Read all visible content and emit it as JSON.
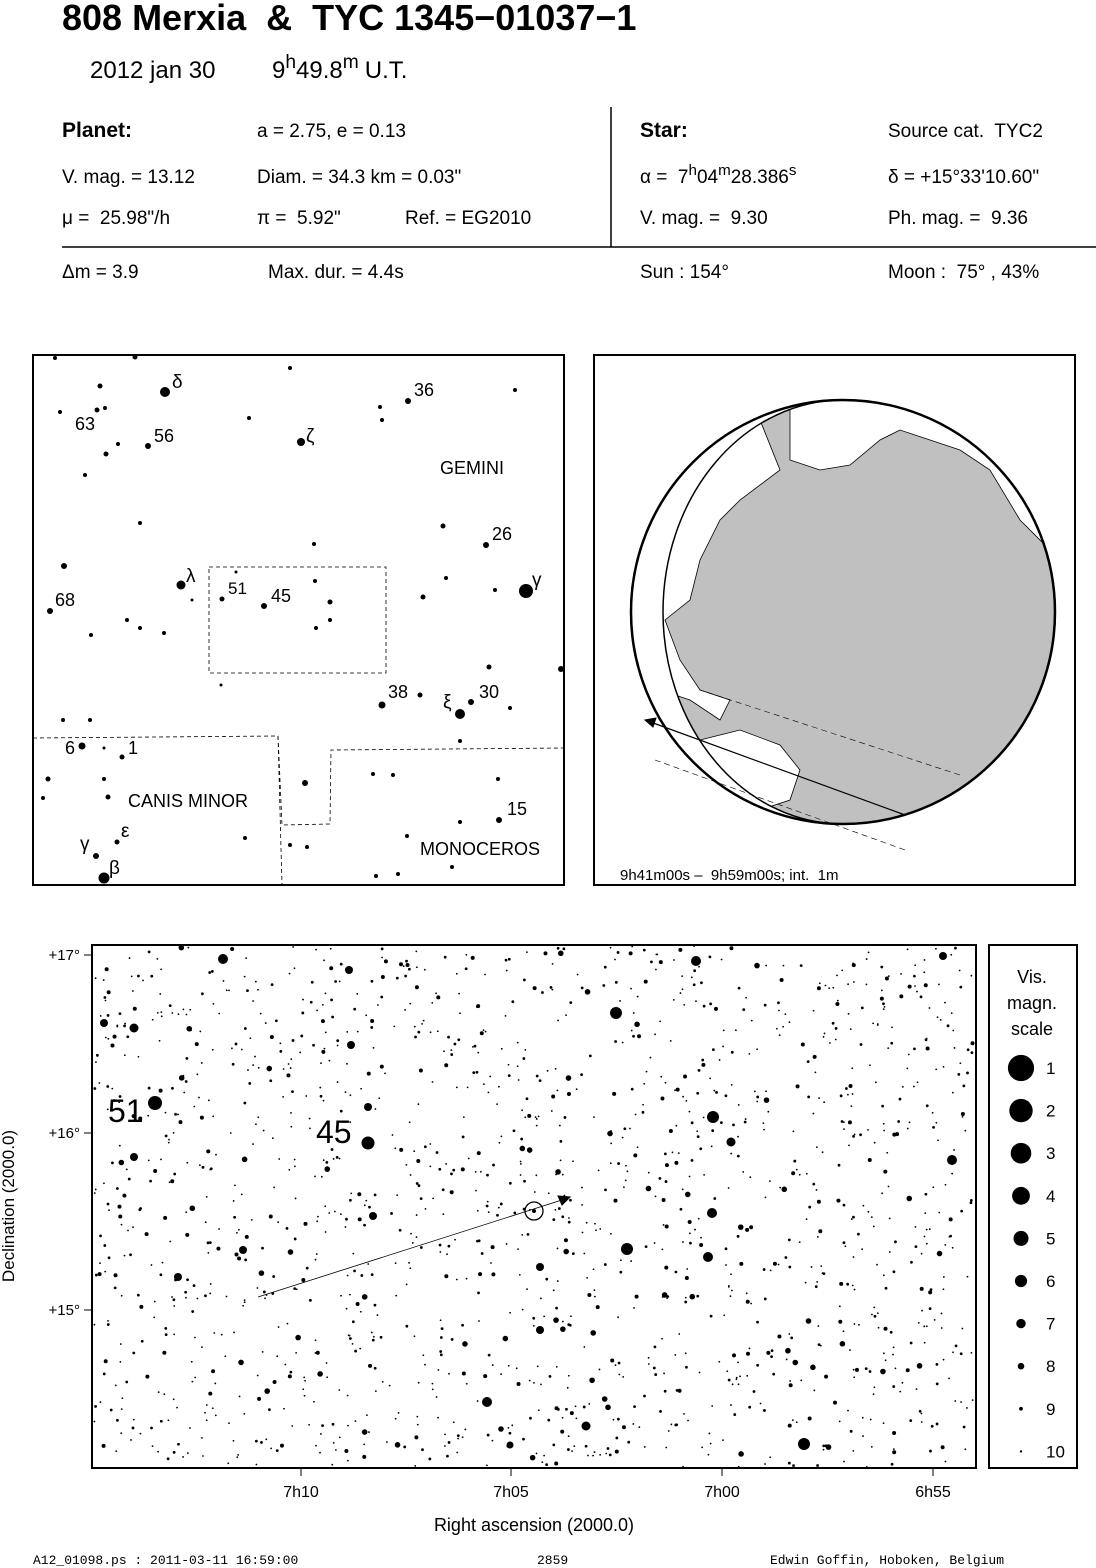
{
  "header": {
    "title": "808 Merxia  &  TYC 1345−01037−1",
    "date": "2012 jan 30",
    "time": [
      "9",
      "h",
      "49.8",
      "m"
    ],
    "time_suffix": "U.T."
  },
  "info": {
    "rows": [
      [
        "Planet:",
        "a = 2.75, e = 0.13",
        "Star:",
        "Source cat.  TYC2"
      ],
      [
        "V. mag. = 13.12",
        "Diam. = 34.3 km = 0.03\"",
        [
          "α =  7",
          "h",
          "04",
          "m",
          "28.386",
          "s"
        ],
        "δ = +15°33'10.60\""
      ],
      [
        "μ =  25.98\"/h",
        "π =  5.92\"",
        "Ref. = EG2010",
        "V. mag. =  9.30",
        "Ph. mag. =  9.36"
      ],
      [
        "Δm = 3.9",
        "Max. dur. = 4.4s",
        "Sun : 154°",
        "Moon :  75° , 43%"
      ]
    ]
  },
  "finder": {
    "labels": [
      "δ",
      "63",
      "56",
      "ζ",
      "36",
      "GEMINI",
      "26",
      "λ",
      "51",
      "45",
      "68",
      "γ",
      "38",
      "ξ",
      "30",
      "6",
      "1",
      "CANIS MINOR",
      "15",
      "ε",
      "γ",
      "β",
      "MONOCEROS"
    ]
  },
  "path_map": {
    "caption": "9h41m00s –  9h59m00s; int.  1m"
  },
  "star_chart": {
    "y_ticks": [
      "+17°",
      "+16°",
      "+15°"
    ],
    "x_ticks": [
      "7h10",
      "7h05",
      "7h00",
      "6h55"
    ],
    "x_label": "Right ascension (2000.0)",
    "y_label": "Declination (2000.0)",
    "star_labels": [
      "51",
      "45"
    ],
    "scale": {
      "title": [
        "Vis.",
        "magn.",
        "scale"
      ],
      "magnitudes": [
        1,
        2,
        3,
        4,
        5,
        6,
        7,
        8,
        9,
        10
      ]
    }
  },
  "footer": {
    "file": "A12_01098.ps : 2011-03-11 16:59:00",
    "number": "2859",
    "author": "Edwin Goffin, Hoboken, Belgium"
  }
}
